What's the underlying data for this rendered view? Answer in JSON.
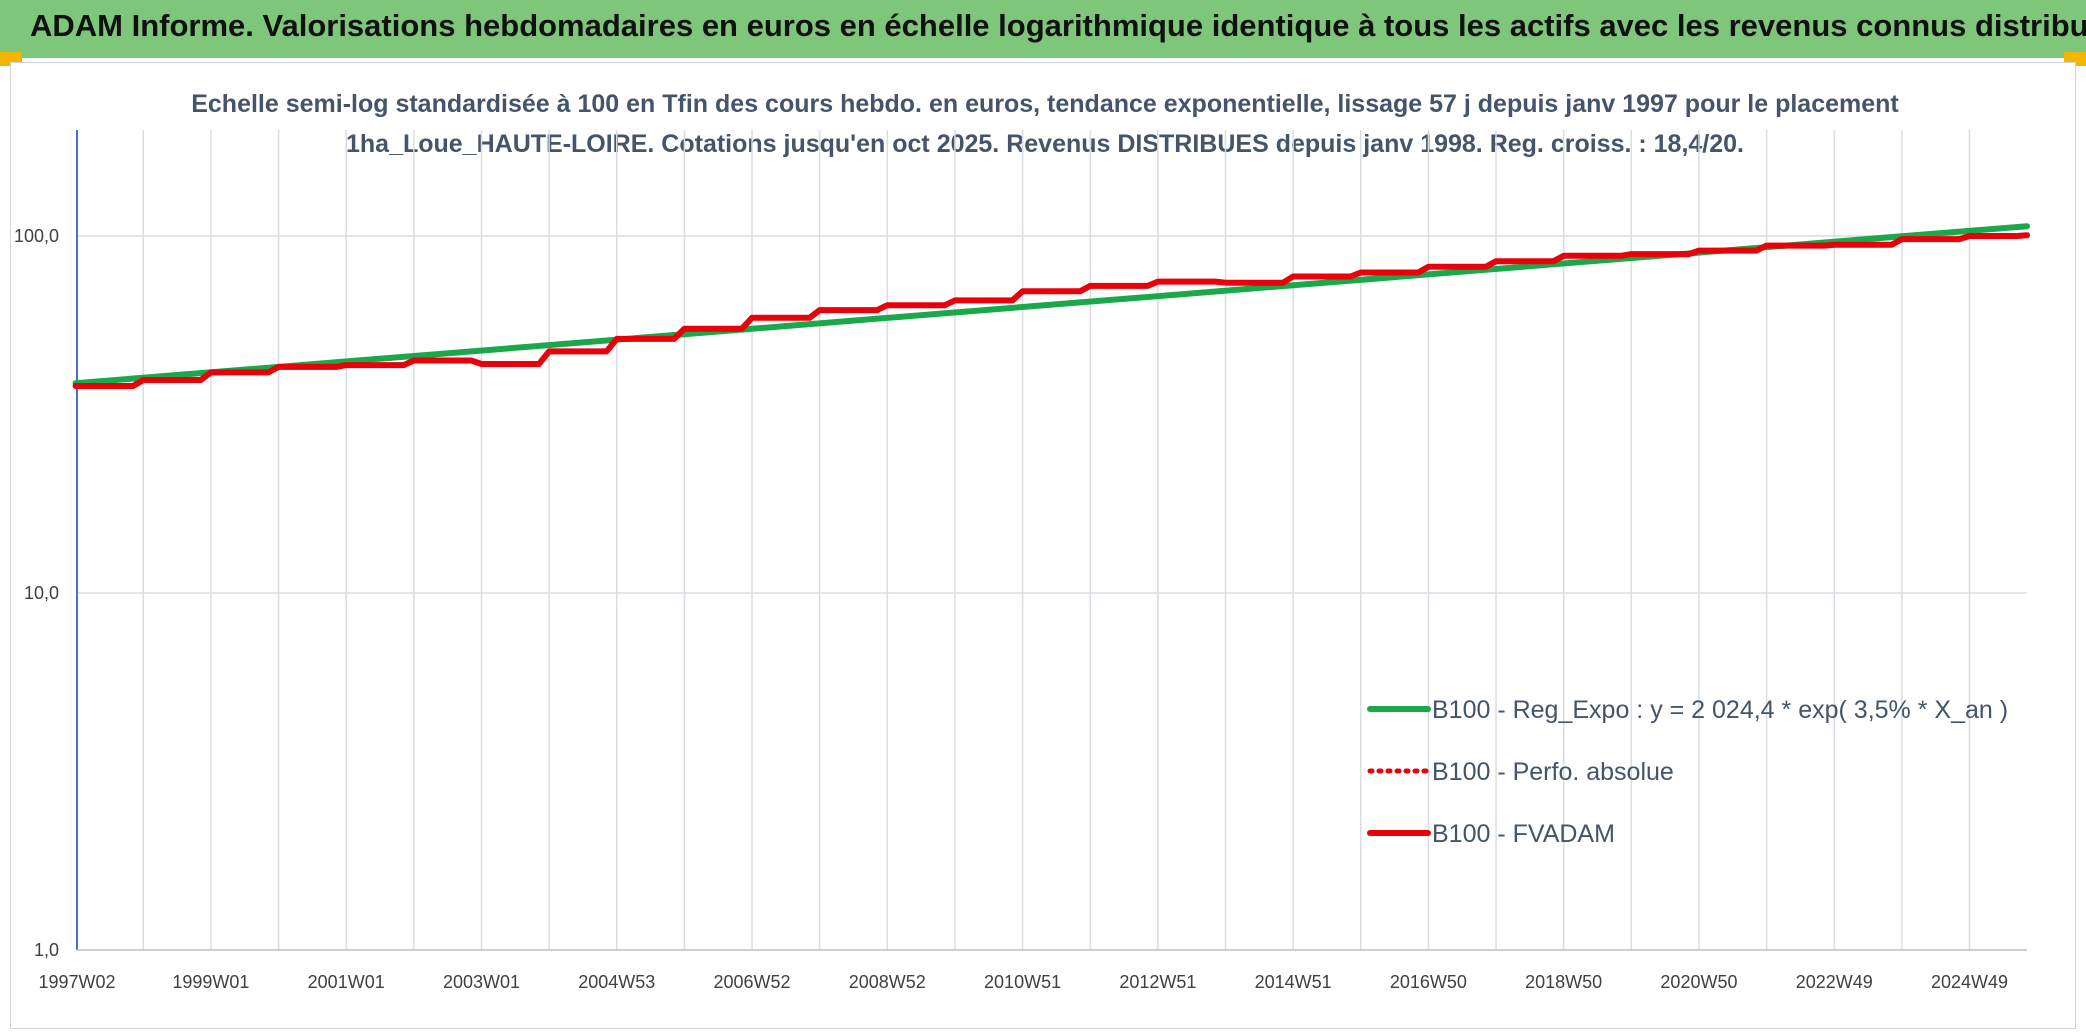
{
  "header": {
    "title": "ADAM Informe. Valorisations hebdomadaires en euros en échelle logarithmique identique à tous les actifs avec les revenus connus distribués"
  },
  "chart_data": {
    "type": "line",
    "title": "",
    "subtitle": "Echelle semi-log standardisée à 100 en Tfin des cours hebdo. en euros, tendance exponentielle, lissage 57 j depuis janv 1997 pour le placement 1ha_Loue_HAUTE-LOIRE. Cotations jusqu'en oct 2025. Revenus DISTRIBUES depuis janv 1998. Reg. croiss. : 18,4/20.",
    "xlabel": "",
    "ylabel": "",
    "y_scale": "log",
    "ylim": [
      1,
      200
    ],
    "xlim": [
      1997.02,
      2025.85
    ],
    "y_ticks": [
      {
        "value": 1,
        "label": "1,0"
      },
      {
        "value": 10,
        "label": "10,0"
      },
      {
        "value": 100,
        "label": "100,0"
      }
    ],
    "x_ticks": [
      {
        "value": 1997.02,
        "label": "1997W02"
      },
      {
        "value": 1999.0,
        "label": "1999W01"
      },
      {
        "value": 2001.0,
        "label": "2001W01"
      },
      {
        "value": 2003.0,
        "label": "2003W01"
      },
      {
        "value": 2005.0,
        "label": "2004W53"
      },
      {
        "value": 2007.0,
        "label": "2006W52"
      },
      {
        "value": 2009.0,
        "label": "2008W52"
      },
      {
        "value": 2011.0,
        "label": "2010W51"
      },
      {
        "value": 2013.0,
        "label": "2012W51"
      },
      {
        "value": 2015.0,
        "label": "2014W51"
      },
      {
        "value": 2017.0,
        "label": "2016W50"
      },
      {
        "value": 2019.0,
        "label": "2018W50"
      },
      {
        "value": 2021.0,
        "label": "2020W50"
      },
      {
        "value": 2023.0,
        "label": "2022W49"
      },
      {
        "value": 2025.0,
        "label": "2024W49"
      }
    ],
    "minor_gridline_offsets": [
      1.0
    ],
    "grid": true,
    "legend_position": "bottom-right",
    "series": [
      {
        "name": "B100 - Reg_Expo : y = 2 024,4 * exp( 3,5% *  X_an )",
        "color": "#1aa84a",
        "style": "solid",
        "x": [
          1997.0,
          2025.85
        ],
        "y": [
          38.7,
          106.5
        ]
      },
      {
        "name": "B100 - Perfo. absolue",
        "color": "#e8000b",
        "style": "dotted",
        "x": [],
        "y": []
      },
      {
        "name": "B100 - FVADAM",
        "color": "#e8000b",
        "style": "solid",
        "x": [
          1997.0,
          1998.0,
          1999.0,
          2000.0,
          2001.0,
          2002.0,
          2003.0,
          2004.0,
          2005.0,
          2006.0,
          2007.0,
          2008.0,
          2009.0,
          2010.0,
          2011.0,
          2012.0,
          2013.0,
          2014.0,
          2015.0,
          2016.0,
          2017.0,
          2018.0,
          2019.0,
          2020.0,
          2021.0,
          2022.0,
          2023.0,
          2024.0,
          2025.0,
          2025.85
        ],
        "y": [
          38.0,
          39.5,
          41.5,
          43.0,
          43.5,
          44.8,
          43.8,
          47.5,
          51.5,
          55.0,
          59.0,
          62.0,
          64.0,
          66.0,
          70.0,
          72.5,
          74.5,
          74.0,
          77.0,
          79.0,
          82.0,
          85.0,
          88.0,
          89.0,
          91.0,
          94.0,
          94.5,
          98.0,
          100.0,
          100.5
        ]
      }
    ]
  }
}
